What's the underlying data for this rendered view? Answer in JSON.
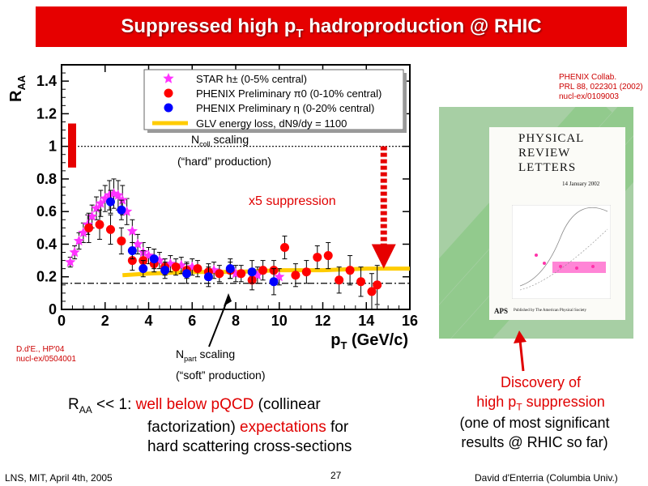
{
  "slide": {
    "title_main": "Suppressed high p",
    "title_sub": "T",
    "title_rest": " hadroproduction @ RHIC",
    "page_number": "27",
    "footer_left": "LNS, MIT, April 4th, 2005",
    "footer_right": "David d'Enterria (Columbia Univ.)"
  },
  "annotations": {
    "ncoll_main": "N",
    "ncoll_sub": "coll",
    "ncoll_rest": " scaling",
    "hard": "(“hard” production)",
    "x5": "x5 suppression",
    "npart_main": "N",
    "npart_sub": "part",
    "npart_rest": " scaling",
    "soft": "(“soft” production)",
    "cite1": "D.d'E., HP'04",
    "cite2": "nucl-ex/0504001",
    "phenix1": "PHENIX Collab.",
    "phenix2": "PRL 88, 022301 (2002)",
    "phenix3": "nucl-ex/0109003"
  },
  "conclusion": {
    "l1_a": "R",
    "l1_sub": "AA",
    "l1_b": " << 1: ",
    "l1_red": "well below pQCD",
    "l1_c": " (collinear",
    "l2_a": "factorization) ",
    "l2_red": "expectations",
    "l2_b": " for",
    "l3": "hard scattering cross-sections"
  },
  "discovery": {
    "l1": "Discovery of",
    "l2_a": "high p",
    "l2_sub": "T",
    "l2_b": " suppression",
    "l3": "(one of most significant",
    "l4": "results @ RHIC so far)"
  },
  "journal": {
    "name1": "PHYSICAL",
    "name2": "REVIEW",
    "name3": "LETTERS",
    "date": "14 January 2002",
    "publisher": "Published by The American Physical Society",
    "logo": "APS"
  },
  "colors": {
    "title_bg": "#e60000",
    "star": "#ff33ff",
    "pi0": "#ff0000",
    "eta": "#0000ff",
    "glv": "#ffcc00",
    "accent_red": "#e00000"
  },
  "chart_data": {
    "type": "scatter",
    "xlabel": "p_T (GeV/c)",
    "ylabel": "R_AA",
    "xlim": [
      0,
      16
    ],
    "ylim": [
      0,
      1.5
    ],
    "xticks": [
      "0",
      "2",
      "4",
      "6",
      "8",
      "10",
      "12",
      "14",
      "16"
    ],
    "yticks": [
      "0",
      "0.2",
      "0.4",
      "0.6",
      "0.8",
      "1",
      "1.2",
      "1.4"
    ],
    "reference_lines": [
      {
        "name": "Ncoll scaling",
        "y": 1.0,
        "style": "dotted"
      },
      {
        "name": "Npart scaling",
        "y": 0.16,
        "style": "dash-dot"
      }
    ],
    "legend": {
      "placement": "top",
      "entries": [
        "STAR h± (0-5% central)",
        "PHENIX Preliminary π0 (0-10% central)",
        "PHENIX Preliminary η (0-20% central)",
        "GLV energy loss, dN9/dy = 1100"
      ]
    },
    "series": [
      {
        "name": "STAR h± (0-5% central)",
        "marker": "star",
        "x": [
          0.4,
          0.6,
          0.8,
          1.0,
          1.2,
          1.4,
          1.6,
          1.8,
          2.0,
          2.2,
          2.4,
          2.6,
          2.8,
          3.0,
          3.25,
          3.5,
          3.75,
          4.0,
          4.5,
          5.0,
          5.5,
          6.0,
          7.0,
          8.0,
          9.0,
          10.0
        ],
        "y": [
          0.29,
          0.35,
          0.42,
          0.47,
          0.52,
          0.57,
          0.62,
          0.65,
          0.68,
          0.7,
          0.71,
          0.7,
          0.67,
          0.6,
          0.48,
          0.4,
          0.35,
          0.33,
          0.3,
          0.28,
          0.27,
          0.26,
          0.24,
          0.22,
          0.21,
          0.2
        ],
        "err": [
          0.03,
          0.04,
          0.05,
          0.06,
          0.06,
          0.07,
          0.07,
          0.08,
          0.08,
          0.09,
          0.09,
          0.09,
          0.09,
          0.08,
          0.07,
          0.06,
          0.06,
          0.05,
          0.05,
          0.05,
          0.05,
          0.05,
          0.05,
          0.05,
          0.05,
          0.05
        ]
      },
      {
        "name": "PHENIX Preliminary π0 (0-10% central)",
        "marker": "circle",
        "x": [
          1.25,
          1.75,
          2.25,
          2.75,
          3.25,
          3.75,
          4.25,
          4.75,
          5.25,
          5.75,
          6.25,
          6.75,
          7.25,
          7.75,
          8.25,
          8.75,
          9.25,
          9.75,
          10.25,
          10.75,
          11.25,
          11.75,
          12.25,
          12.75,
          13.25,
          13.75,
          14.25
        ],
        "y": [
          0.5,
          0.52,
          0.49,
          0.42,
          0.3,
          0.3,
          0.28,
          0.26,
          0.26,
          0.24,
          0.25,
          0.23,
          0.22,
          0.24,
          0.22,
          0.18,
          0.24,
          0.24,
          0.38,
          0.21,
          0.23,
          0.32,
          0.33,
          0.18,
          0.24,
          0.17,
          0.11
        ],
        "err": [
          0.09,
          0.09,
          0.09,
          0.08,
          0.06,
          0.06,
          0.05,
          0.05,
          0.05,
          0.05,
          0.05,
          0.05,
          0.05,
          0.05,
          0.05,
          0.06,
          0.06,
          0.06,
          0.07,
          0.07,
          0.07,
          0.07,
          0.08,
          0.08,
          0.09,
          0.09,
          0.11
        ]
      },
      {
        "name": "PHENIX Preliminary η (0-20% central)",
        "marker": "circle",
        "x": [
          2.25,
          2.75,
          3.25,
          3.75,
          4.25,
          4.75,
          5.75,
          6.75,
          7.75,
          8.75,
          9.75
        ],
        "y": [
          0.66,
          0.61,
          0.36,
          0.25,
          0.31,
          0.24,
          0.22,
          0.2,
          0.25,
          0.23,
          0.17
        ],
        "err": [
          0.07,
          0.06,
          0.05,
          0.05,
          0.06,
          0.05,
          0.06,
          0.06,
          0.06,
          0.07,
          0.08
        ]
      },
      {
        "name": "GLV energy loss, dN9/dy = 1100",
        "marker": "line",
        "x": [
          2.8,
          4,
          6,
          8,
          10,
          12,
          14,
          16
        ],
        "y": [
          0.21,
          0.22,
          0.23,
          0.23,
          0.24,
          0.24,
          0.25,
          0.25
        ]
      }
    ],
    "extra_point": {
      "x": 14.5,
      "y": 0.15,
      "err": 0.12
    }
  }
}
